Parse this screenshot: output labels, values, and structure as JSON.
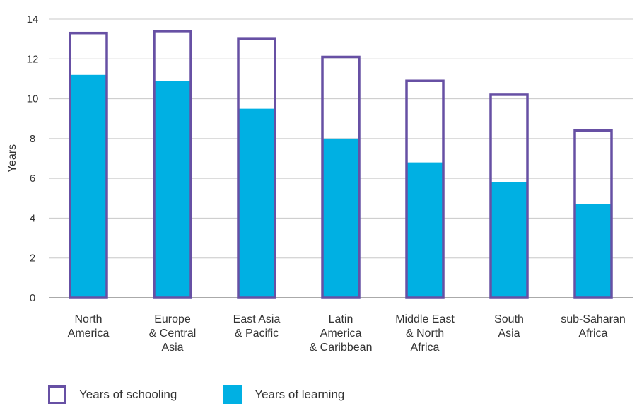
{
  "chart_data": {
    "type": "bar",
    "ylabel": "Years",
    "ylim": [
      0,
      14
    ],
    "yticks": [
      "0",
      "2",
      "4",
      "6",
      "8",
      "10",
      "12",
      "14"
    ],
    "grid": true,
    "legend_position": "bottom-left",
    "categories": [
      [
        "North",
        "America"
      ],
      [
        "Europe",
        "& Central",
        "Asia"
      ],
      [
        "East Asia",
        "& Pacific"
      ],
      [
        "Latin",
        "America",
        "& Caribbean"
      ],
      [
        "Middle East",
        "& North",
        "Africa"
      ],
      [
        "South",
        "Asia"
      ],
      [
        "sub-Saharan",
        "Africa"
      ]
    ],
    "series": [
      {
        "name": "Years of schooling",
        "values": [
          13.3,
          13.4,
          13.0,
          12.1,
          10.9,
          10.2,
          8.4
        ],
        "color": "#6750a4"
      },
      {
        "name": "Years of learning",
        "values": [
          11.2,
          10.9,
          9.5,
          8.0,
          6.8,
          5.8,
          4.7
        ],
        "color": "#00b0e3"
      }
    ]
  }
}
